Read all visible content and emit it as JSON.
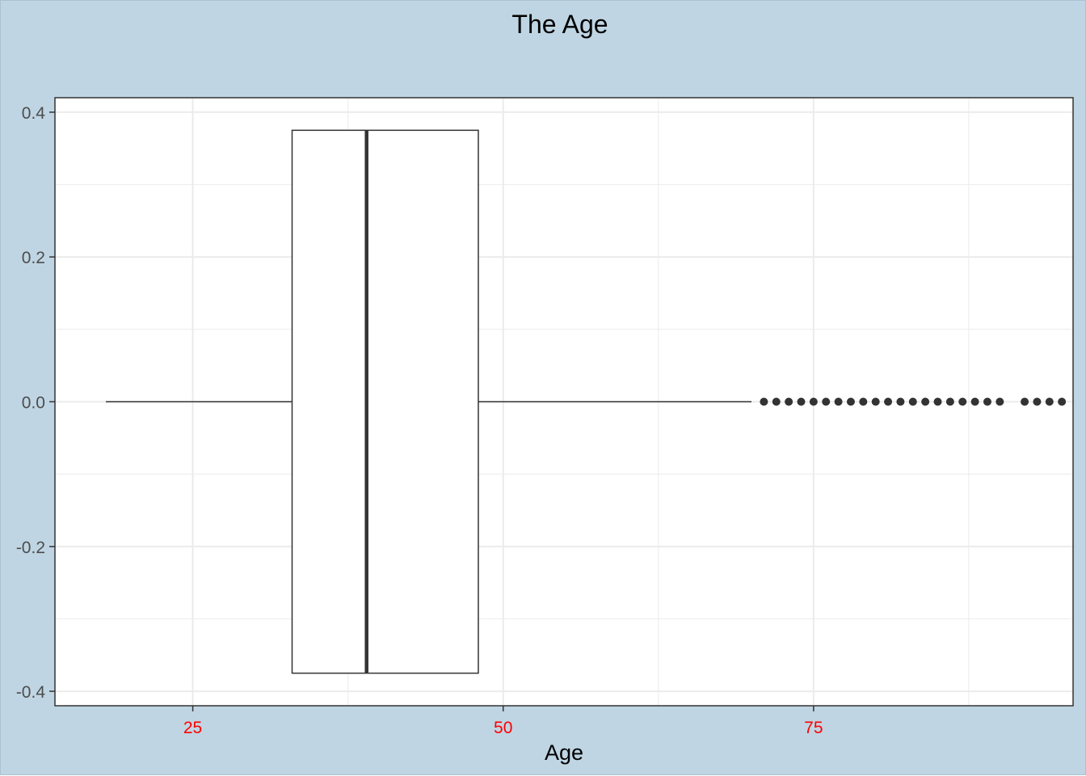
{
  "chart_data": {
    "type": "boxplot",
    "title": "The Age",
    "xlabel": "Age",
    "ylabel": "",
    "xlim": [
      13.9,
      95.9
    ],
    "ylim": [
      -0.42,
      0.42
    ],
    "x_ticks": [
      25,
      50,
      75
    ],
    "x_tick_labels": [
      "25",
      "50",
      "75"
    ],
    "y_ticks": [
      -0.4,
      -0.2,
      0.0,
      0.2,
      0.4
    ],
    "y_tick_labels": [
      "-0.4",
      "-0.2",
      "0.0",
      "0.2",
      "0.4"
    ],
    "box": {
      "whisker_low": 18,
      "q1": 33,
      "median": 39,
      "q3": 48,
      "whisker_high": 70,
      "y_center": 0.0,
      "half_width": 0.375
    },
    "outliers": [
      71,
      72,
      73,
      74,
      75,
      76,
      77,
      78,
      79,
      80,
      81,
      82,
      83,
      84,
      85,
      86,
      87,
      88,
      89,
      90,
      92,
      93,
      94,
      95
    ],
    "grid": true,
    "colors": {
      "plot_background": "#bfd5e3",
      "panel_background": "#ffffff",
      "grid": "#ebebeb",
      "box_line": "#333333",
      "x_tick_labels": "#ff0000",
      "y_tick_labels": "#4d4d4d"
    }
  }
}
